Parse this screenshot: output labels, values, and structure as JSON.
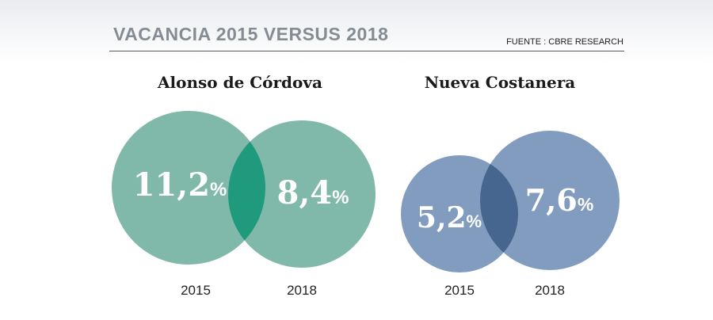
{
  "header": {
    "title": "VACANCIA 2015 VERSUS 2018",
    "source": "FUENTE : CBRE RESEARCH"
  },
  "chart_data": [
    {
      "type": "venn",
      "title": "Alonso de Córdova",
      "unit": "%",
      "sets": [
        {
          "year": "2015",
          "value": 11.2,
          "label": "11,2"
        },
        {
          "year": "2018",
          "value": 8.4,
          "label": "8,4"
        }
      ],
      "colors": {
        "circle": "#80b8aa",
        "overlap": "#1f9a7d"
      }
    },
    {
      "type": "venn",
      "title": "Nueva Costanera",
      "unit": "%",
      "sets": [
        {
          "year": "2015",
          "value": 5.2,
          "label": "5,2"
        },
        {
          "year": "2018",
          "value": 7.6,
          "label": "7,6"
        }
      ],
      "colors": {
        "circle": "#829cbf",
        "overlap": "#46658f"
      }
    }
  ]
}
